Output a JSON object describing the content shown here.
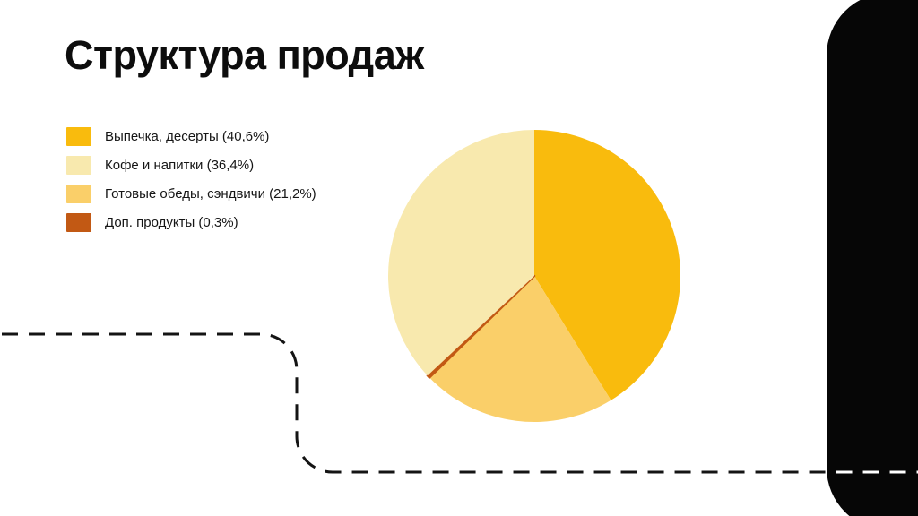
{
  "slide": {
    "title": "Структура продаж",
    "background_color": "#FFFFFF"
  },
  "chart_data": {
    "type": "pie",
    "title": "Структура продаж",
    "unit": "%",
    "decimal_style": "comma",
    "legend_position": "left",
    "start_angle_deg": 0,
    "direction": "clockwise",
    "draw_order_clockwise_from_top": [
      0,
      2,
      3,
      1
    ],
    "slices": [
      {
        "label": "Выпечка, десерты",
        "value": 40.6,
        "legend_text": "Выпечка, десерты (40,6%)",
        "color": "#F9BB0D"
      },
      {
        "label": "Кофе и напитки",
        "value": 36.4,
        "legend_text": "Кофе и напитки (36,4%)",
        "color": "#F8E9AE"
      },
      {
        "label": "Готовые обеды, сэндвичи",
        "value": 21.2,
        "legend_text": "Готовые обеды, сэндвичи (21,2%)",
        "color": "#FACF69"
      },
      {
        "label": "Доп. продукты",
        "value": 0.3,
        "legend_text": "Доп. продукты (0,3%)",
        "color": "#C25914"
      }
    ]
  },
  "decor": {
    "side_panel_color": "#060606",
    "dash_color_on_white": "#141414",
    "dash_color_on_black": "#FFFFFF"
  }
}
